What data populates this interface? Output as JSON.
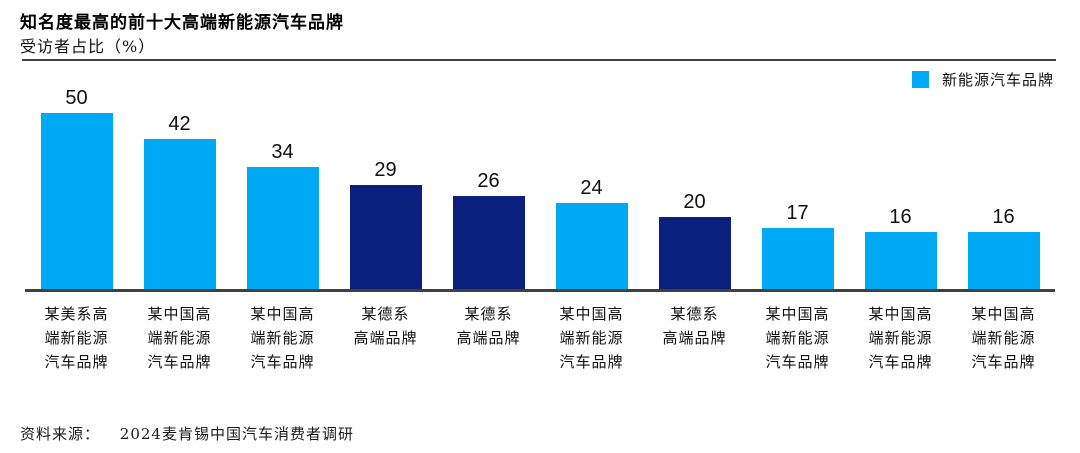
{
  "chart_data": {
    "type": "bar",
    "title": "知名度最高的前十大高端新能源汽车品牌",
    "subtitle": "受访者占比（%）",
    "ylabel": "受访者占比（%）",
    "ylim": [
      0,
      50
    ],
    "grid": false,
    "legend_position": "top-right",
    "legend": [
      {
        "label": "新能源汽车品牌",
        "color": "#00A9F4"
      }
    ],
    "palette": {
      "light_blue": "#00A9F4",
      "dark_blue": "#0A2180"
    },
    "bars": [
      {
        "category": "某美系高端新能源汽车品牌",
        "label_lines": [
          "某美系高",
          "端新能源",
          "汽车品牌"
        ],
        "value": 50,
        "color": "#00A9F4"
      },
      {
        "category": "某中国高端新能源汽车品牌",
        "label_lines": [
          "某中国高",
          "端新能源",
          "汽车品牌"
        ],
        "value": 42,
        "color": "#00A9F4"
      },
      {
        "category": "某中国高端新能源汽车品牌",
        "label_lines": [
          "某中国高",
          "端新能源",
          "汽车品牌"
        ],
        "value": 34,
        "color": "#00A9F4"
      },
      {
        "category": "某德系高端品牌",
        "label_lines": [
          "某德系",
          "高端品牌"
        ],
        "value": 29,
        "color": "#0A2180"
      },
      {
        "category": "某德系高端品牌",
        "label_lines": [
          "某德系",
          "高端品牌"
        ],
        "value": 26,
        "color": "#0A2180"
      },
      {
        "category": "某中国高端新能源汽车品牌",
        "label_lines": [
          "某中国高",
          "端新能源",
          "汽车品牌"
        ],
        "value": 24,
        "color": "#00A9F4"
      },
      {
        "category": "某德系高端品牌",
        "label_lines": [
          "某德系",
          "高端品牌"
        ],
        "value": 20,
        "color": "#0A2180"
      },
      {
        "category": "某中国高端新能源汽车品牌",
        "label_lines": [
          "某中国高",
          "端新能源",
          "汽车品牌"
        ],
        "value": 17,
        "color": "#00A9F4"
      },
      {
        "category": "某中国高端新能源汽车品牌",
        "label_lines": [
          "某中国高",
          "端新能源",
          "汽车品牌"
        ],
        "value": 16,
        "color": "#00A9F4"
      },
      {
        "category": "某中国高端新能源汽车品牌",
        "label_lines": [
          "某中国高",
          "端新能源",
          "汽车品牌"
        ],
        "value": 16,
        "color": "#00A9F4"
      }
    ]
  },
  "footer": {
    "source_label": "资料来源：",
    "source_text": "2024麦肯锡中国汽车消费者调研"
  }
}
